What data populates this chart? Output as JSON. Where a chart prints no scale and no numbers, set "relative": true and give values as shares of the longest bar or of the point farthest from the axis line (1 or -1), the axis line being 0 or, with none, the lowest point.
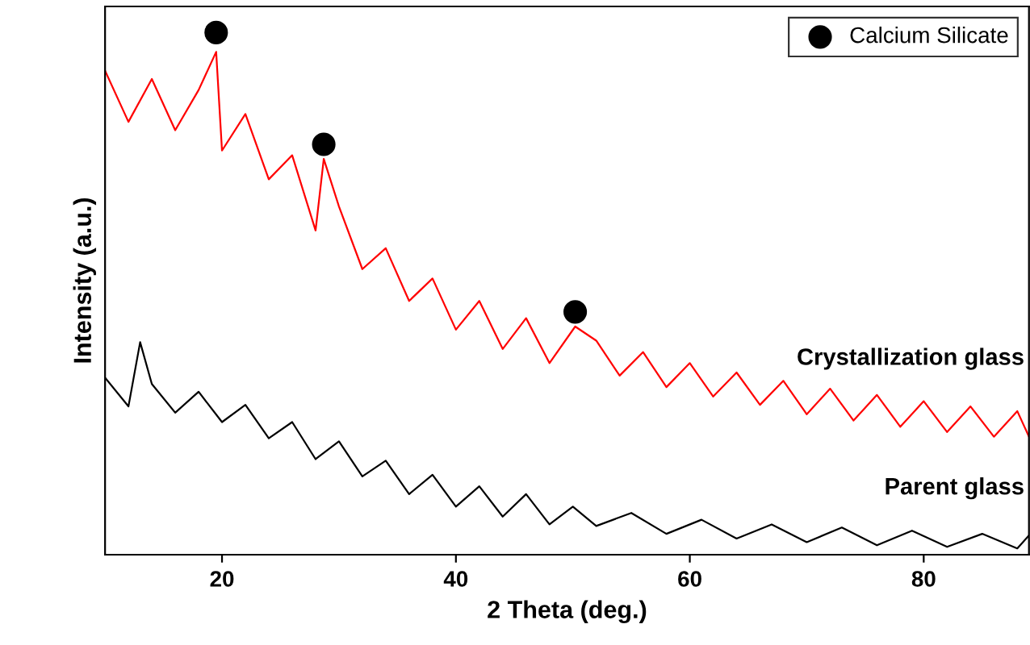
{
  "chart_data": {
    "type": "line",
    "relative": true,
    "xlabel": "2 Theta (deg.)",
    "ylabel": "Intensity (a.u.)",
    "xlim": [
      10,
      89
    ],
    "xticks": [
      20,
      40,
      60,
      80
    ],
    "legend": "top right",
    "grid": false,
    "series": [
      {
        "name": "Crystallization glass",
        "color": "#ff0000",
        "x": [
          10,
          12,
          14,
          16,
          18,
          19.5,
          20,
          22,
          24,
          26,
          28,
          28.7,
          30,
          32,
          34,
          36,
          38,
          40,
          42,
          44,
          46,
          48,
          50.2,
          52,
          54,
          56,
          58,
          60,
          62,
          64,
          66,
          68,
          70,
          72,
          74,
          76,
          78,
          80,
          82,
          84,
          86,
          88,
          89
        ],
        "values": [
          0.927,
          0.829,
          0.911,
          0.813,
          0.89,
          0.963,
          0.774,
          0.844,
          0.719,
          0.765,
          0.621,
          0.758,
          0.667,
          0.547,
          0.587,
          0.486,
          0.529,
          0.431,
          0.486,
          0.394,
          0.453,
          0.367,
          0.437,
          0.41,
          0.343,
          0.388,
          0.321,
          0.367,
          0.303,
          0.349,
          0.287,
          0.333,
          0.269,
          0.318,
          0.257,
          0.306,
          0.245,
          0.294,
          0.235,
          0.284,
          0.226,
          0.275,
          0.226
        ]
      },
      {
        "name": "Parent glass",
        "color": "#000000",
        "x": [
          10,
          12,
          13,
          14,
          16,
          18,
          20,
          22,
          24,
          26,
          28,
          30,
          32,
          34,
          36,
          38,
          40,
          42,
          44,
          46,
          48,
          50,
          52,
          55,
          58,
          61,
          64,
          67,
          70,
          73,
          76,
          79,
          82,
          85,
          88,
          89
        ],
        "values": [
          0.339,
          0.284,
          0.407,
          0.327,
          0.272,
          0.312,
          0.254,
          0.287,
          0.223,
          0.254,
          0.183,
          0.217,
          0.15,
          0.18,
          0.116,
          0.153,
          0.092,
          0.131,
          0.073,
          0.116,
          0.058,
          0.092,
          0.055,
          0.08,
          0.04,
          0.067,
          0.031,
          0.058,
          0.024,
          0.052,
          0.018,
          0.046,
          0.015,
          0.04,
          0.012,
          0.037
        ]
      },
      {
        "name": "Calcium Silicate",
        "type": "scatter",
        "marker": "circle",
        "color": "#000000",
        "x": [
          19.5,
          28.7,
          50.2
        ],
        "values": [
          1.0,
          0.786,
          0.465
        ]
      }
    ]
  }
}
